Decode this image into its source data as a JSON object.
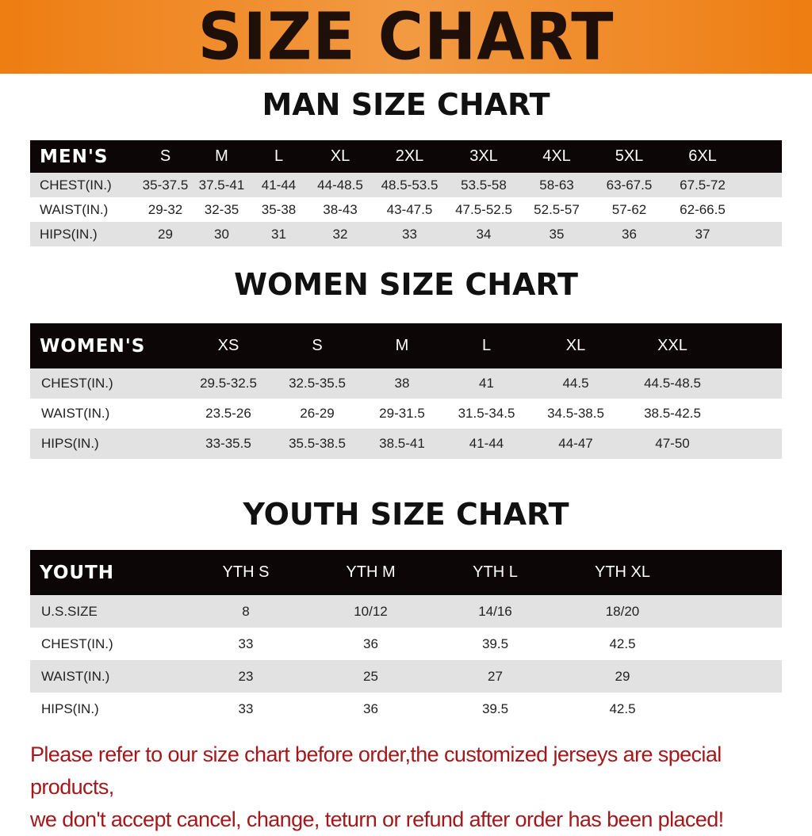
{
  "title": "SIZE CHART",
  "colors": {
    "banner": "#ee7d12",
    "header_row": "#0c0606",
    "stripe": "#e2e2e2",
    "notice": "#a3191b"
  },
  "men": {
    "title": "MAN SIZE CHART",
    "header": [
      "MEN'S",
      "S",
      "M",
      "L",
      "XL",
      "2XL",
      "3XL",
      "4XL",
      "5XL",
      "6XL"
    ],
    "rows": [
      [
        "CHEST(IN.)",
        "35-37.5",
        "37.5-41",
        "41-44",
        "44-48.5",
        "48.5-53.5",
        "53.5-58",
        "58-63",
        "63-67.5",
        "67.5-72"
      ],
      [
        "WAIST(IN.)",
        "29-32",
        "32-35",
        "35-38",
        "38-43",
        "43-47.5",
        "47.5-52.5",
        "52.5-57",
        "57-62",
        "62-66.5"
      ],
      [
        "HIPS(IN.)",
        "29",
        "30",
        "31",
        "32",
        "33",
        "34",
        "35",
        "36",
        "37"
      ]
    ]
  },
  "women": {
    "title": "WOMEN SIZE CHART",
    "header": [
      "WOMEN'S",
      "XS",
      "S",
      "M",
      "L",
      "XL",
      "XXL"
    ],
    "rows": [
      [
        "CHEST(IN.)",
        "29.5-32.5",
        "32.5-35.5",
        "38",
        "41",
        "44.5",
        "44.5-48.5"
      ],
      [
        "WAIST(IN.)",
        "23.5-26",
        "26-29",
        "29-31.5",
        "31.5-34.5",
        "34.5-38.5",
        "38.5-42.5"
      ],
      [
        "HIPS(IN.)",
        "33-35.5",
        "35.5-38.5",
        "38.5-41",
        "41-44",
        "44-47",
        "47-50"
      ]
    ]
  },
  "youth": {
    "title": "YOUTH SIZE CHART",
    "header": [
      "YOUTH",
      "YTH S",
      "YTH M",
      "YTH L",
      "YTH XL"
    ],
    "rows": [
      [
        "U.S.SIZE",
        "8",
        "10/12",
        "14/16",
        "18/20"
      ],
      [
        "CHEST(IN.)",
        "33",
        "36",
        "39.5",
        "42.5"
      ],
      [
        "WAIST(IN.)",
        "23",
        "25",
        "27",
        "29"
      ],
      [
        "HIPS(IN.)",
        "33",
        "36",
        "39.5",
        "42.5"
      ]
    ]
  },
  "notice": {
    "line1": "Please refer to our size chart before order,the customized jerseys are special products,",
    "line2": "we don't accept cancel, change, teturn or refund after order has been placed!"
  }
}
